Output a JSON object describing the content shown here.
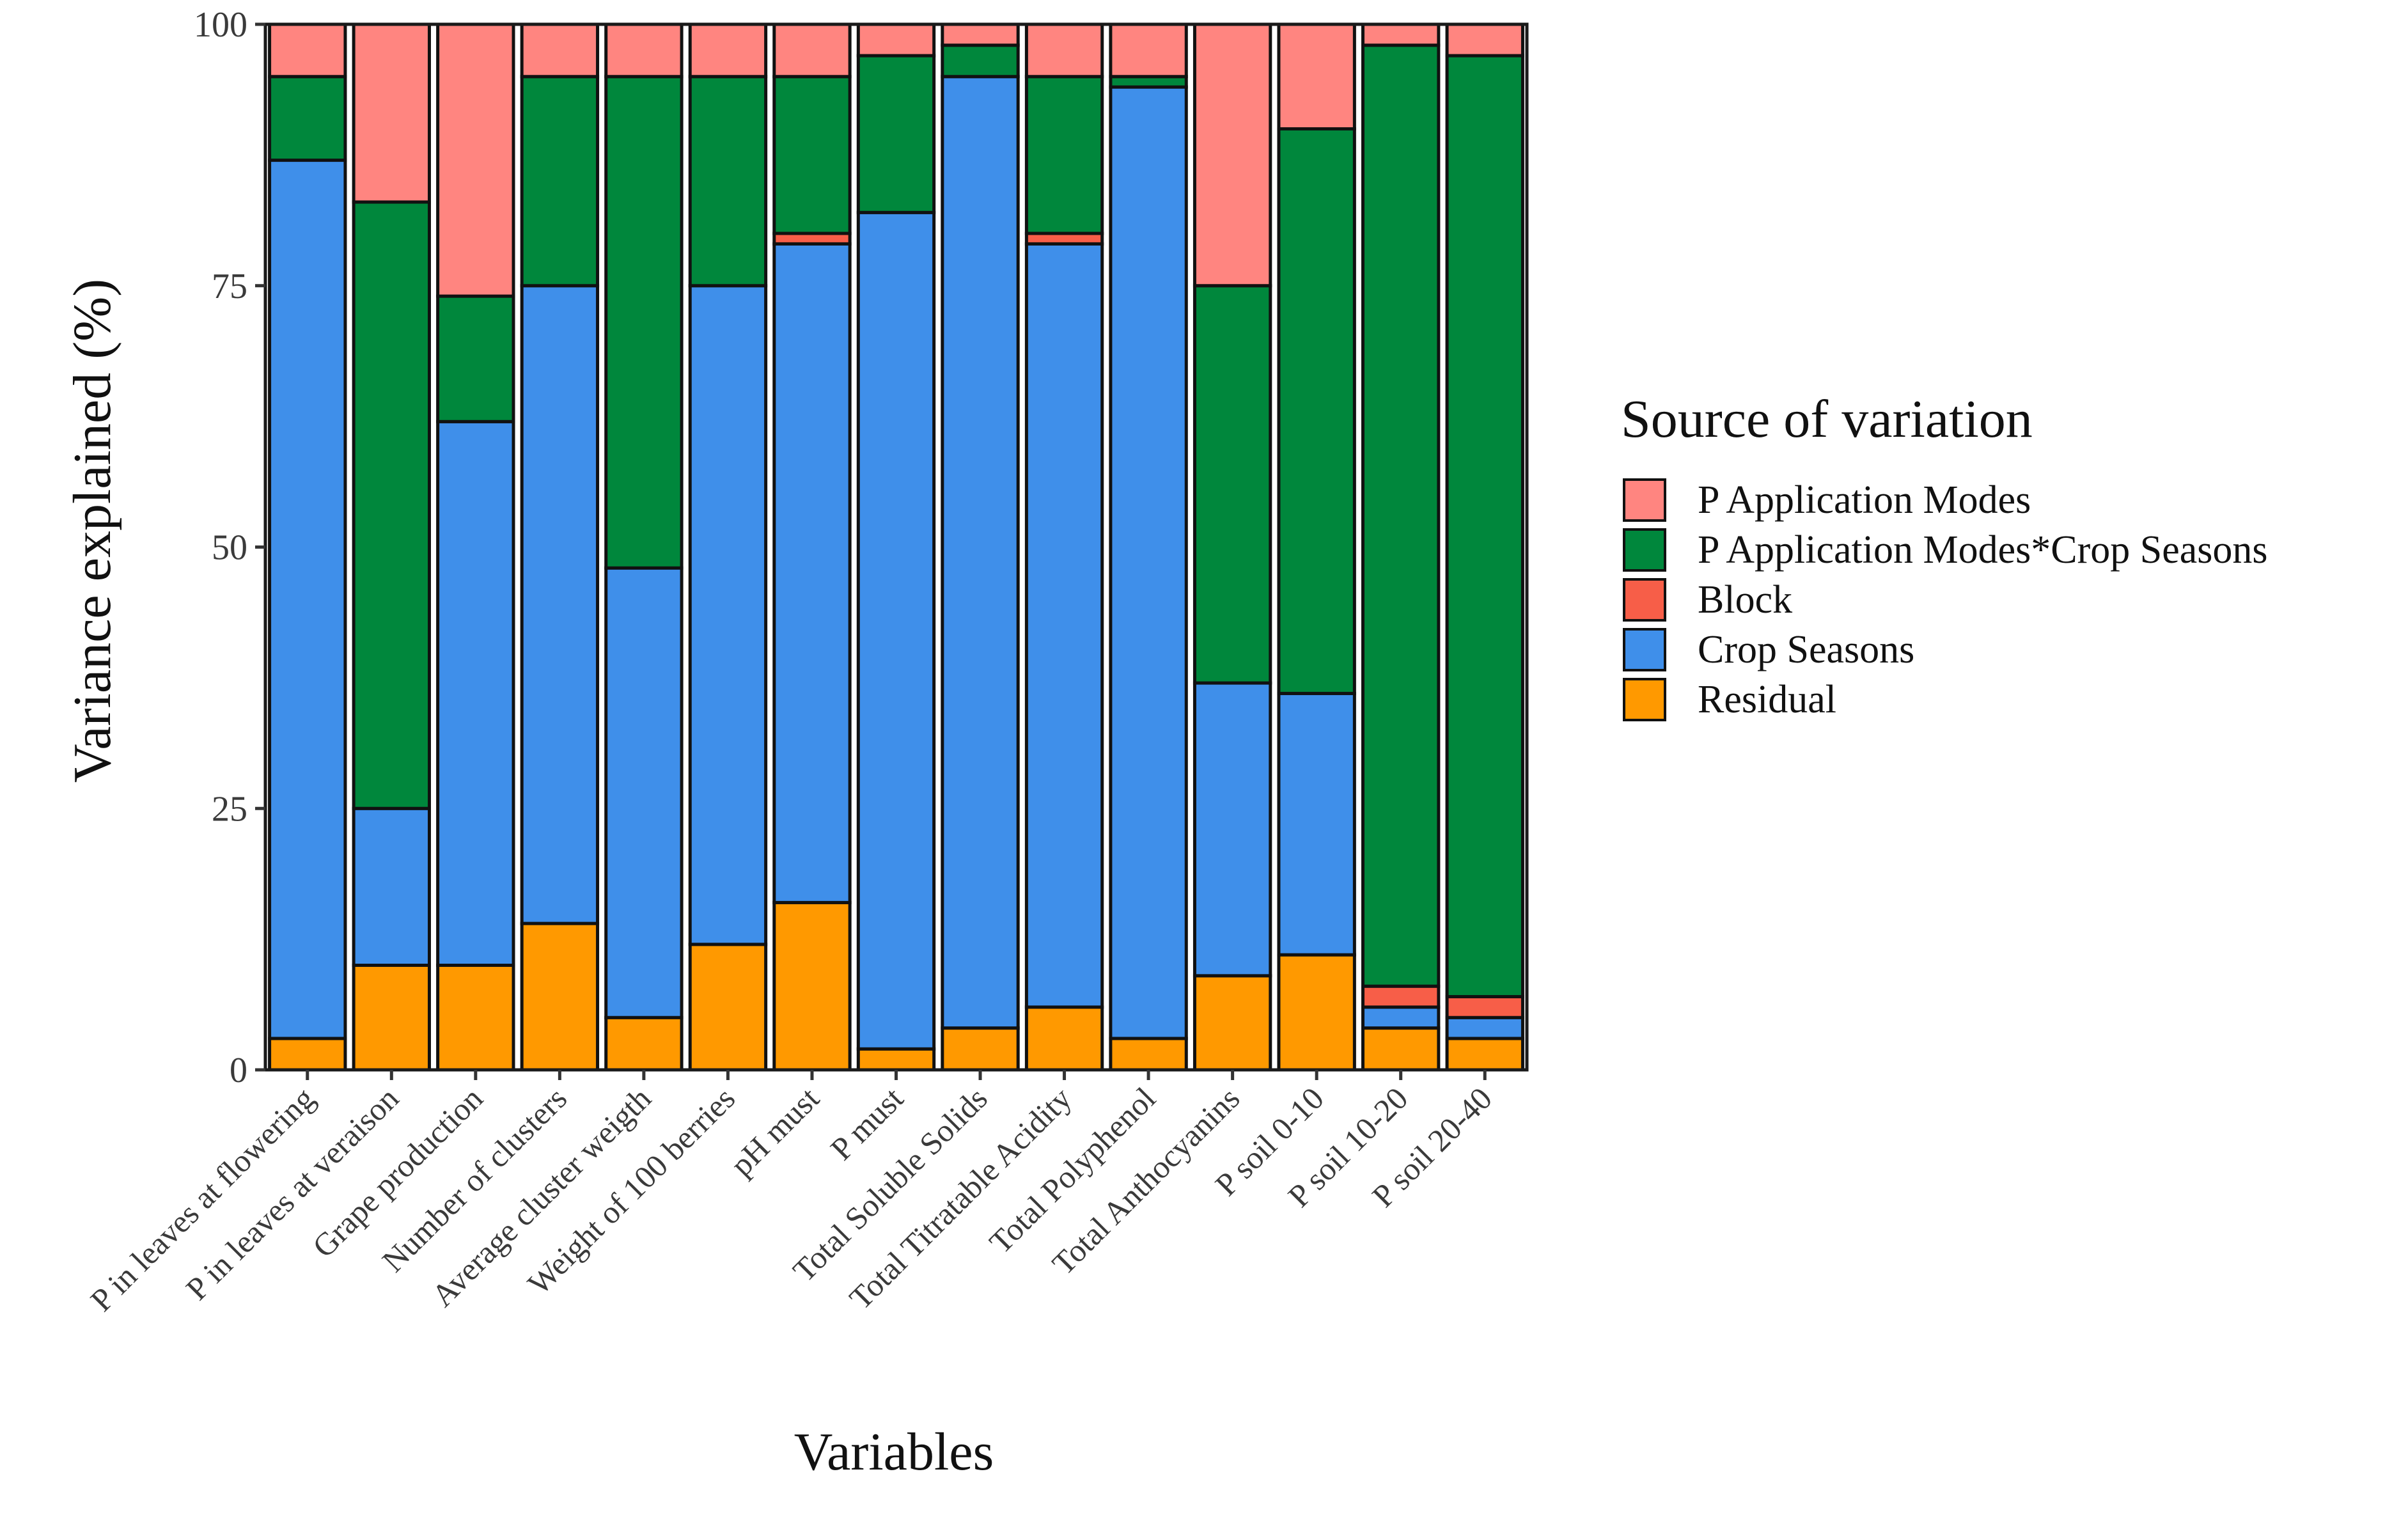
{
  "chart_data": {
    "type": "bar",
    "stacked": true,
    "xlabel": "Variables",
    "ylabel": "Variance explained (%)",
    "ylim": [
      0,
      100
    ],
    "yticks": [
      0,
      25,
      50,
      75,
      100
    ],
    "grid": false,
    "legend": {
      "title": "Source of variation",
      "placement": "right",
      "entries": [
        "P Application Modes",
        "P Application Modes*Crop Seasons",
        "Block",
        "Crop Seasons",
        "Residual"
      ]
    },
    "categories": [
      "P in leaves at flowering",
      "P in leaves at veraison",
      "Grape production",
      "Number of clusters",
      "Average cluster weigth",
      "Weight of 100 berries",
      "pH must",
      "P must",
      "Total Soluble Solids",
      "Total Titratable Acidity",
      "Total Polyphenol",
      "Total Anthocyanins",
      "P soil 0-10",
      "P soil 10-20",
      "P soil 20-40"
    ],
    "series": [
      {
        "name": "Residual",
        "color": "#FF9900",
        "values": [
          3,
          10,
          10,
          14,
          5,
          12,
          16,
          2,
          4,
          6,
          3,
          9,
          11,
          4,
          3
        ]
      },
      {
        "name": "Crop Seasons",
        "color": "#3F8FEA",
        "values": [
          84,
          15,
          52,
          61,
          43,
          63,
          63,
          80,
          91,
          73,
          91,
          28,
          25,
          2,
          2
        ]
      },
      {
        "name": "Block",
        "color": "#F75E48",
        "values": [
          0,
          0,
          0,
          0,
          0,
          0,
          1,
          0,
          0,
          1,
          0,
          0,
          0,
          2,
          2
        ]
      },
      {
        "name": "P Application Modes*Crop Seasons",
        "color": "#00873C",
        "values": [
          8,
          58,
          12,
          20,
          47,
          20,
          15,
          15,
          3,
          15,
          1,
          38,
          54,
          90,
          90
        ]
      },
      {
        "name": "P Application Modes",
        "color": "#FF8580",
        "values": [
          5,
          17,
          26,
          5,
          5,
          5,
          5,
          3,
          2,
          5,
          5,
          25,
          10,
          2,
          3
        ]
      }
    ]
  }
}
